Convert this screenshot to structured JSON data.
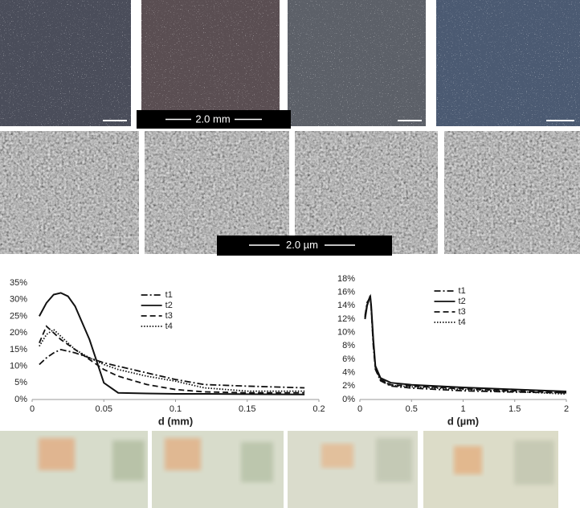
{
  "micrograph_scale_bar": "2.0 mm",
  "sem_scale_bar": "2.0 µm",
  "chart_data": [
    {
      "type": "line",
      "xlabel": "d (mm)",
      "legend": "upper center",
      "grid": false,
      "xlim": [
        0,
        0.2
      ],
      "xticks": [
        0,
        0.05,
        0.1,
        0.15,
        0.2
      ],
      "ylim": [
        0,
        35
      ],
      "yticks": [
        {
          "value": 0,
          "label": "0%"
        },
        {
          "value": 5,
          "label": "5%"
        },
        {
          "value": 10,
          "label": "10%"
        },
        {
          "value": 15,
          "label": "15%"
        },
        {
          "value": 20,
          "label": "20%"
        },
        {
          "value": 25,
          "label": "25%"
        },
        {
          "value": 30,
          "label": "30%"
        },
        {
          "value": 35,
          "label": "35%"
        }
      ],
      "x": [
        0.005,
        0.01,
        0.015,
        0.02,
        0.025,
        0.03,
        0.04,
        0.05,
        0.06,
        0.08,
        0.1,
        0.12,
        0.15,
        0.19
      ],
      "series": [
        {
          "name": "t1",
          "color": "#111111",
          "line_style": "dash-dot",
          "values": [
            10.5,
            12.5,
            14,
            15,
            14.5,
            14,
            12.5,
            11,
            10,
            8,
            6,
            4.5,
            4,
            3.5
          ]
        },
        {
          "name": "t2",
          "color": "#111111",
          "line_style": "solid",
          "values": [
            25,
            29,
            31.5,
            32,
            31,
            28,
            18,
            5,
            2,
            1.8,
            1.7,
            1.7,
            1.6,
            1.5
          ]
        },
        {
          "name": "t3",
          "color": "#111111",
          "line_style": "dashed",
          "values": [
            17,
            22,
            20,
            18,
            16.5,
            15,
            12,
            9,
            7,
            4.5,
            3,
            2.3,
            2,
            2
          ]
        },
        {
          "name": "t4",
          "color": "#111111",
          "line_style": "dotted",
          "values": [
            16,
            19.5,
            21,
            19,
            17,
            15,
            12.5,
            10.5,
            9,
            7,
            5.5,
            3.5,
            2.5,
            2.5
          ]
        }
      ]
    },
    {
      "type": "line",
      "xlabel": "d (µm)",
      "legend": "upper center",
      "grid": false,
      "xlim": [
        0,
        2
      ],
      "xticks": [
        0,
        0.5,
        1,
        1.5,
        2
      ],
      "ylim": [
        0,
        18
      ],
      "yticks": [
        {
          "value": 0,
          "label": "0%"
        },
        {
          "value": 2,
          "label": "2%"
        },
        {
          "value": 4,
          "label": "4%"
        },
        {
          "value": 6,
          "label": "6%"
        },
        {
          "value": 8,
          "label": "8%"
        },
        {
          "value": 10,
          "label": "10%"
        },
        {
          "value": 12,
          "label": "12%"
        },
        {
          "value": 14,
          "label": "14%"
        },
        {
          "value": 16,
          "label": "16%"
        },
        {
          "value": 18,
          "label": "18%"
        }
      ],
      "x": [
        0.05,
        0.07,
        0.09,
        0.1,
        0.11,
        0.13,
        0.15,
        0.2,
        0.3,
        0.5,
        1,
        1.5,
        2
      ],
      "series": [
        {
          "name": "t1",
          "color": "#111111",
          "line_style": "dash-dot",
          "values": [
            12.5,
            14.5,
            15,
            15.2,
            13.5,
            8,
            4.5,
            2.8,
            2,
            1.7,
            1.3,
            1.1,
            1.0
          ]
        },
        {
          "name": "t2",
          "color": "#111111",
          "line_style": "solid",
          "values": [
            12,
            14,
            15,
            15.5,
            14,
            9,
            5,
            3.2,
            2.5,
            2.2,
            1.8,
            1.5,
            1.2
          ]
        },
        {
          "name": "t3",
          "color": "#111111",
          "line_style": "dashed",
          "values": [
            12.2,
            14.2,
            15.1,
            15.4,
            13.8,
            8.5,
            4.8,
            3,
            2.2,
            2,
            1.6,
            1.3,
            1
          ]
        },
        {
          "name": "t4",
          "color": "#111111",
          "line_style": "dotted",
          "values": [
            12.3,
            14.3,
            15,
            15.3,
            13.7,
            8.3,
            4.7,
            2.9,
            2.1,
            1.9,
            1.5,
            1.2,
            0.8
          ]
        }
      ]
    }
  ]
}
